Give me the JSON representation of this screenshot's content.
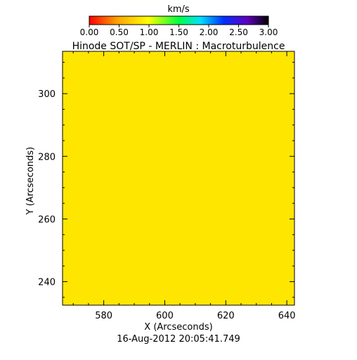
{
  "colorbar": {
    "unit": "km/s",
    "min": 0.0,
    "max": 3.0,
    "tick_labels": [
      "0.00",
      "0.50",
      "1.00",
      "1.50",
      "2.00",
      "2.50",
      "3.00"
    ],
    "colormap": "rainbow reversed (red→yellow→green→cyan→blue→purple→black)"
  },
  "chart_data": {
    "type": "heatmap",
    "title": "Hinode SOT/SP - MERLIN : Macroturbulence",
    "xlabel": "X (Arcseconds)",
    "ylabel": "Y (Arcseconds)",
    "xlim": [
      566.5,
      642.5
    ],
    "ylim": [
      232.5,
      313.5
    ],
    "x_ticks": [
      580,
      600,
      620,
      640
    ],
    "y_ticks": [
      240,
      260,
      280,
      300
    ],
    "x_tick_labels": [
      "580",
      "600",
      "620",
      "640"
    ],
    "y_tick_labels": [
      "240",
      "260",
      "280",
      "300"
    ],
    "field_value": 1.1,
    "field_color": "#ffe600",
    "timestamp": "16-Aug-2012 20:05:41.749"
  }
}
